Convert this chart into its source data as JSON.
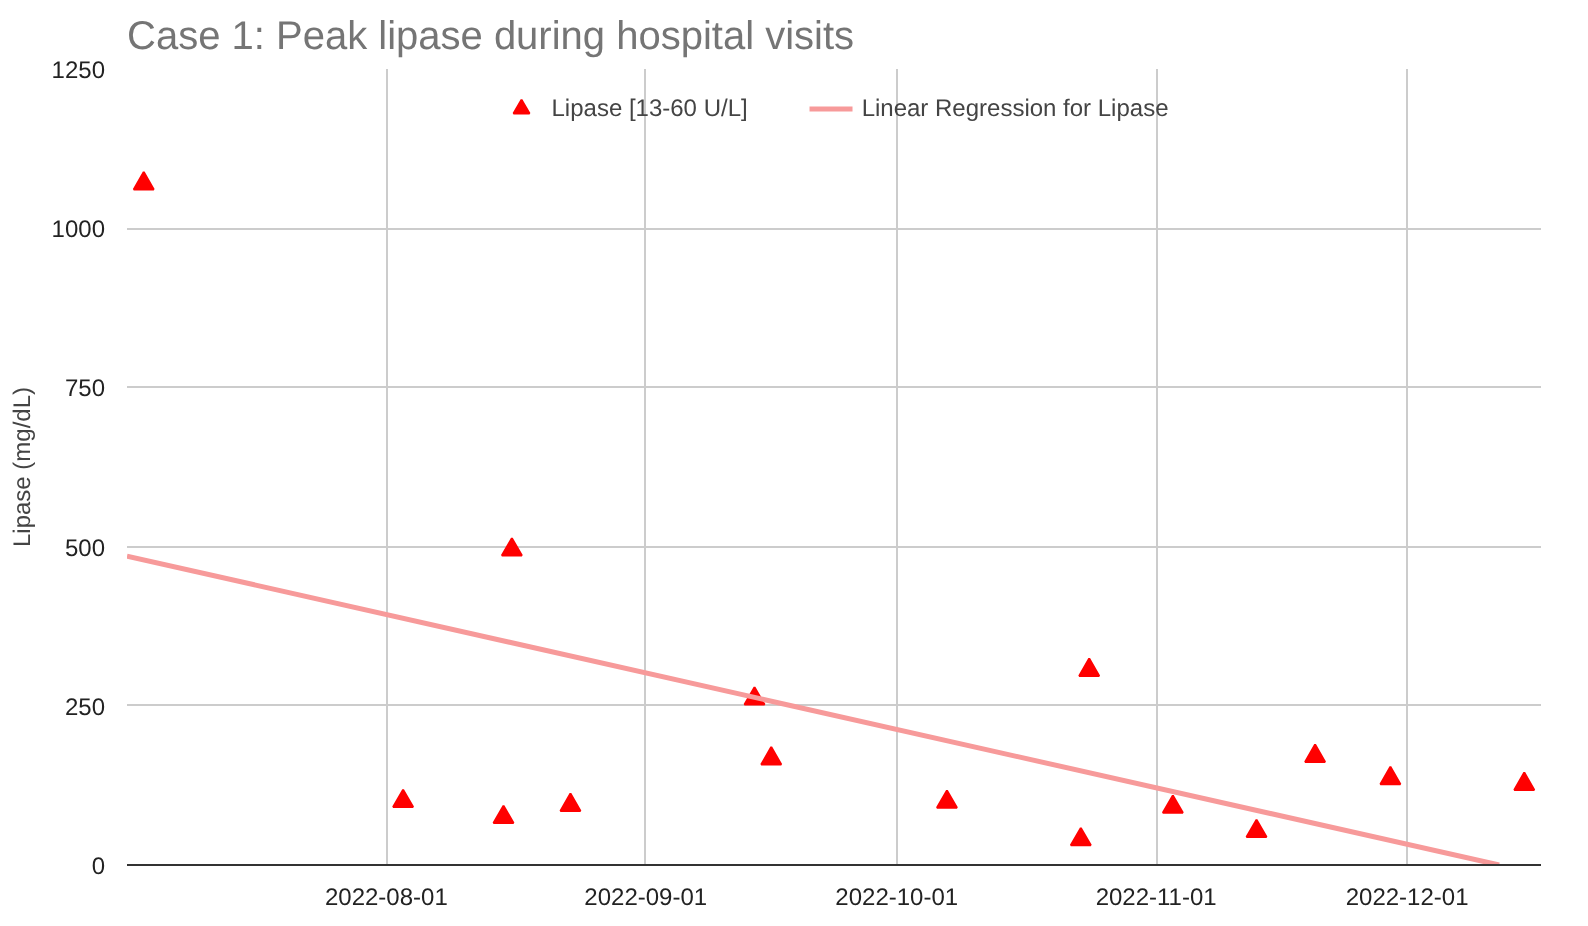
{
  "chart_data": {
    "type": "scatter",
    "title": "Case 1: Peak lipase during hospital visits",
    "ylabel": "Lipase (mg/dL)",
    "xlim": [
      "2022-07-01",
      "2022-12-17"
    ],
    "xticks": [
      "2022-08-01",
      "2022-09-01",
      "2022-10-01",
      "2022-11-01",
      "2022-12-01"
    ],
    "ylim": [
      0,
      1250
    ],
    "yticks": [
      0,
      250,
      500,
      750,
      1000,
      1250
    ],
    "grid": true,
    "legend": "top",
    "series": [
      {
        "name": "Lipase [13-60 U/L]",
        "marker": "triangle",
        "color": "#ff0000",
        "x": [
          "2022-07-03",
          "2022-08-03",
          "2022-08-15",
          "2022-08-16",
          "2022-08-23",
          "2022-09-14",
          "2022-09-16",
          "2022-10-07",
          "2022-10-23",
          "2022-10-24",
          "2022-11-03",
          "2022-11-13",
          "2022-11-20",
          "2022-11-29",
          "2022-12-15"
        ],
        "values": [
          1070,
          100,
          75,
          495,
          94,
          261,
          167,
          99,
          40,
          306,
          91,
          53,
          171,
          136,
          127
        ]
      },
      {
        "name": "Linear Regression for Lipase",
        "type": "line",
        "color": "#f79a9a",
        "x": [
          "2022-07-01",
          "2022-12-12"
        ],
        "values": [
          485,
          0
        ]
      }
    ]
  }
}
